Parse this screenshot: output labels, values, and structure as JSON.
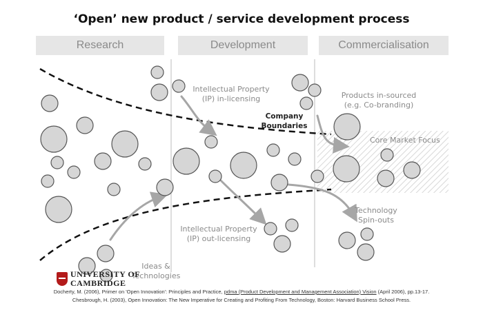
{
  "title": "‘Open’ new product / service development process",
  "phases": [
    "Research",
    "Development",
    "Commercialisation"
  ],
  "labels": {
    "ip_in": "Intellectual Property\n(IP) in-licensing",
    "company_boundaries": "Company\nBoundaries",
    "products_insourced": "Products in-sourced\n(e.g. Co-branding)",
    "core_market": "Core Market Focus",
    "ip_out": "Intellectual Property\n(IP) out-licensing",
    "tech_spinouts": "Technology\nSpin-outs",
    "ideas": "Ideas &\nTechnologies"
  },
  "logo": {
    "line1": "UNIVERSITY OF",
    "line2": "CAMBRIDGE"
  },
  "references": {
    "ref1_prefix": "Docherty, M. (2006), Primer on 'Open Innovation': Principles and Practice, ",
    "ref1_link": "pdma (Product Development and Management Association) Vision",
    "ref1_suffix": " (April 2006), pp.13-17.",
    "ref2": "Chesbrough, H. (2003), Open Innovation: The New Imperative for Creating and Profiting From Technology, Boston: Harvard Business School Press."
  },
  "colors": {
    "circle_fill": "#d6d6d6",
    "circle_stroke": "#555555",
    "arrow": "#a6a6a6",
    "phase_bg": "#e6e6e6"
  }
}
